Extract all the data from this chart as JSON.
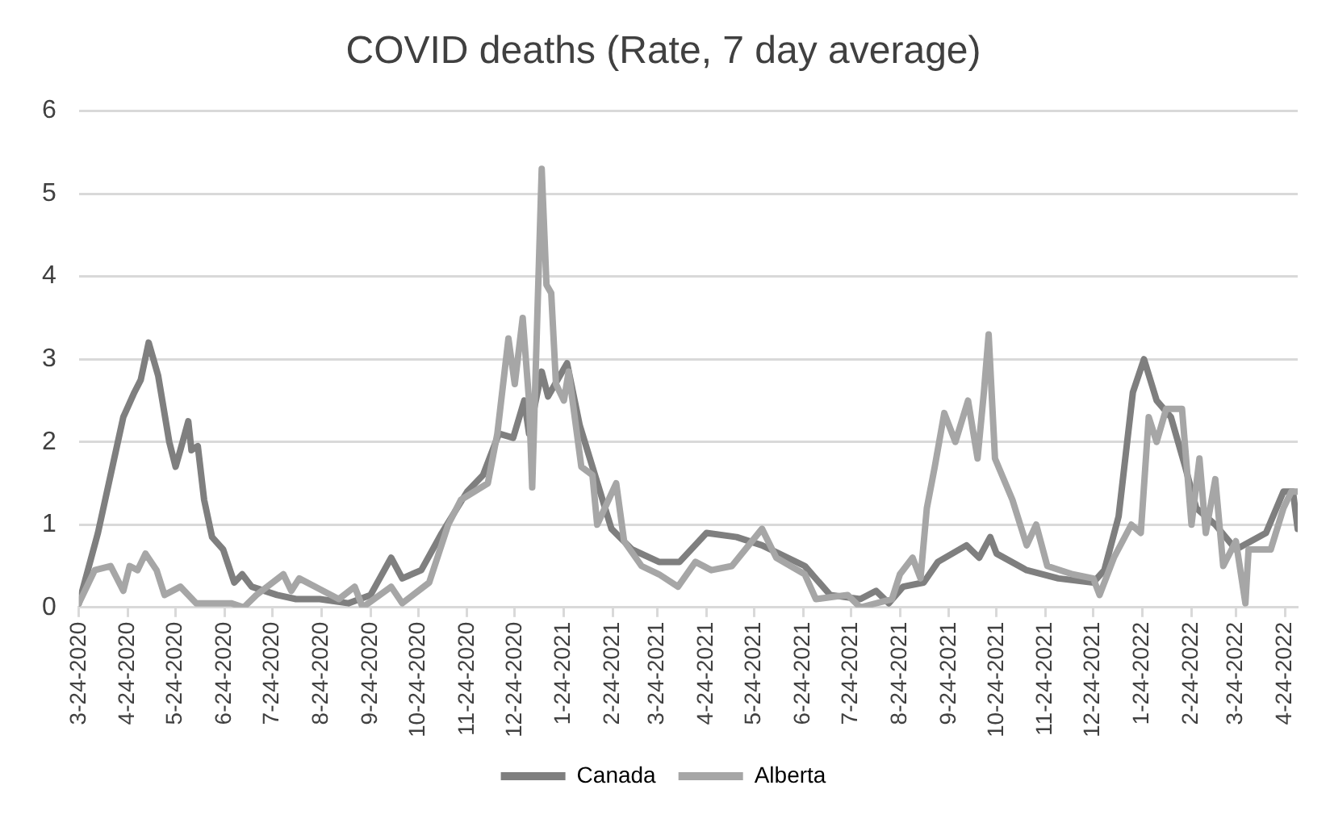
{
  "chart_data": {
    "type": "line",
    "title": "COVID deaths (Rate, 7 day average)",
    "xlim": [
      "2020-03-24",
      "2022-05-02"
    ],
    "xticks": [
      {
        "value": "2020-03-24",
        "label": "3-24-2020"
      },
      {
        "value": "2020-04-24",
        "label": "4-24-2020"
      },
      {
        "value": "2020-05-24",
        "label": "5-24-2020"
      },
      {
        "value": "2020-06-24",
        "label": "6-24-2020"
      },
      {
        "value": "2020-07-24",
        "label": "7-24-2020"
      },
      {
        "value": "2020-08-24",
        "label": "8-24-2020"
      },
      {
        "value": "2020-09-24",
        "label": "9-24-2020"
      },
      {
        "value": "2020-10-24",
        "label": "10-24-2020"
      },
      {
        "value": "2020-11-24",
        "label": "11-24-2020"
      },
      {
        "value": "2020-12-24",
        "label": "12-24-2020"
      },
      {
        "value": "2021-01-24",
        "label": "1-24-2021"
      },
      {
        "value": "2021-02-24",
        "label": "2-24-2021"
      },
      {
        "value": "2021-03-24",
        "label": "3-24-2021"
      },
      {
        "value": "2021-04-24",
        "label": "4-24-2021"
      },
      {
        "value": "2021-05-24",
        "label": "5-24-2021"
      },
      {
        "value": "2021-06-24",
        "label": "6-24-2021"
      },
      {
        "value": "2021-07-24",
        "label": "7-24-2021"
      },
      {
        "value": "2021-08-24",
        "label": "8-24-2021"
      },
      {
        "value": "2021-09-24",
        "label": "9-24-2021"
      },
      {
        "value": "2021-10-24",
        "label": "10-24-2021"
      },
      {
        "value": "2021-11-24",
        "label": "11-24-2021"
      },
      {
        "value": "2021-12-24",
        "label": "12-24-2021"
      },
      {
        "value": "2022-01-24",
        "label": "1-24-2022"
      },
      {
        "value": "2022-02-24",
        "label": "2-24-2022"
      },
      {
        "value": "2022-03-24",
        "label": "3-24-2022"
      },
      {
        "value": "2022-04-24",
        "label": "4-24-2022"
      }
    ],
    "ylim": [
      0,
      6
    ],
    "yticks": [
      0,
      1,
      2,
      3,
      4,
      5,
      6
    ],
    "grid": "y",
    "legend": "bottom",
    "marker": "none",
    "line_style": "solid",
    "series": [
      {
        "name": "Canada",
        "color": "#7f7f7f",
        "x": [
          "2020-03-24",
          "2020-04-05",
          "2020-04-21",
          "2020-04-28",
          "2020-05-02",
          "2020-05-07",
          "2020-05-13",
          "2020-05-20",
          "2020-05-24",
          "2020-05-27",
          "2020-06-01",
          "2020-06-03",
          "2020-06-07",
          "2020-06-11",
          "2020-06-16",
          "2020-06-23",
          "2020-06-30",
          "2020-07-05",
          "2020-07-11",
          "2020-07-27",
          "2020-08-08",
          "2020-08-23",
          "2020-09-10",
          "2020-09-24",
          "2020-10-07",
          "2020-10-14",
          "2020-10-26",
          "2020-11-08",
          "2020-11-24",
          "2020-12-04",
          "2020-12-14",
          "2020-12-23",
          "2020-12-30",
          "2021-01-02",
          "2021-01-10",
          "2021-01-14",
          "2021-01-26",
          "2021-02-03",
          "2021-02-11",
          "2021-02-23",
          "2021-03-08",
          "2021-03-25",
          "2021-04-07",
          "2021-04-24",
          "2021-05-13",
          "2021-05-29",
          "2021-06-25",
          "2021-07-11",
          "2021-07-30",
          "2021-08-09",
          "2021-08-17",
          "2021-08-26",
          "2021-09-08",
          "2021-09-17",
          "2021-10-05",
          "2021-10-13",
          "2021-10-20",
          "2021-10-24",
          "2021-11-12",
          "2021-12-02",
          "2021-12-24",
          "2021-12-31",
          "2022-01-09",
          "2022-01-18",
          "2022-01-25",
          "2022-02-02",
          "2022-02-11",
          "2022-02-20",
          "2022-02-27",
          "2022-03-11",
          "2022-03-24",
          "2022-04-12",
          "2022-04-23",
          "2022-04-29",
          "2022-05-02"
        ],
        "values": [
          0.05,
          0.9,
          2.3,
          2.6,
          2.75,
          3.2,
          2.8,
          2.0,
          1.7,
          1.9,
          2.25,
          1.9,
          1.95,
          1.3,
          0.85,
          0.7,
          0.3,
          0.4,
          0.25,
          0.15,
          0.1,
          0.1,
          0.05,
          0.15,
          0.6,
          0.35,
          0.45,
          0.9,
          1.4,
          1.6,
          2.1,
          2.05,
          2.5,
          2.1,
          2.85,
          2.55,
          2.95,
          2.2,
          1.7,
          0.95,
          0.7,
          0.55,
          0.55,
          0.9,
          0.85,
          0.75,
          0.5,
          0.15,
          0.1,
          0.2,
          0.05,
          0.25,
          0.3,
          0.55,
          0.75,
          0.6,
          0.85,
          0.65,
          0.45,
          0.35,
          0.3,
          0.45,
          1.1,
          2.6,
          3.0,
          2.5,
          2.3,
          1.7,
          1.2,
          1.0,
          0.7,
          0.9,
          1.4,
          1.4,
          0.95
        ]
      },
      {
        "name": "Alberta",
        "color": "#a6a6a6",
        "x": [
          "2020-03-24",
          "2020-04-03",
          "2020-04-13",
          "2020-04-21",
          "2020-04-25",
          "2020-04-30",
          "2020-05-05",
          "2020-05-12",
          "2020-05-17",
          "2020-05-27",
          "2020-06-06",
          "2020-06-28",
          "2020-07-06",
          "2020-07-14",
          "2020-07-31",
          "2020-08-05",
          "2020-08-10",
          "2020-08-25",
          "2020-09-04",
          "2020-09-14",
          "2020-09-19",
          "2020-10-07",
          "2020-10-14",
          "2020-10-31",
          "2020-11-12",
          "2020-11-20",
          "2020-12-07",
          "2020-12-13",
          "2020-12-20",
          "2020-12-24",
          "2020-12-29",
          "2021-01-02",
          "2021-01-04",
          "2021-01-10",
          "2021-01-13",
          "2021-01-16",
          "2021-01-19",
          "2021-01-24",
          "2021-01-27",
          "2021-02-04",
          "2021-02-11",
          "2021-02-14",
          "2021-02-26",
          "2021-03-03",
          "2021-03-14",
          "2021-03-25",
          "2021-04-06",
          "2021-04-17",
          "2021-04-27",
          "2021-05-10",
          "2021-05-29",
          "2021-06-07",
          "2021-06-25",
          "2021-07-02",
          "2021-07-22",
          "2021-07-30",
          "2021-08-19",
          "2021-08-24",
          "2021-09-01",
          "2021-09-06",
          "2021-09-10",
          "2021-09-15",
          "2021-09-21",
          "2021-09-28",
          "2021-10-06",
          "2021-10-12",
          "2021-10-16",
          "2021-10-19",
          "2021-10-23",
          "2021-11-03",
          "2021-11-12",
          "2021-11-18",
          "2021-11-25",
          "2021-12-11",
          "2021-12-24",
          "2021-12-28",
          "2022-01-06",
          "2022-01-17",
          "2022-01-23",
          "2022-01-28",
          "2022-02-02",
          "2022-02-08",
          "2022-02-18",
          "2022-02-24",
          "2022-03-01",
          "2022-03-05",
          "2022-03-11",
          "2022-03-16",
          "2022-03-24",
          "2022-03-30",
          "2022-04-01",
          "2022-04-15",
          "2022-04-23",
          "2022-04-28",
          "2022-05-02"
        ],
        "values": [
          0.05,
          0.45,
          0.5,
          0.2,
          0.5,
          0.45,
          0.65,
          0.45,
          0.15,
          0.25,
          0.05,
          0.05,
          0.0,
          0.15,
          0.4,
          0.2,
          0.35,
          0.2,
          0.1,
          0.25,
          0.0,
          0.25,
          0.05,
          0.3,
          1.0,
          1.3,
          1.5,
          2.1,
          3.25,
          2.7,
          3.5,
          2.5,
          1.45,
          5.3,
          3.9,
          3.8,
          2.7,
          2.5,
          2.85,
          1.7,
          1.6,
          1.0,
          1.5,
          0.8,
          0.5,
          0.4,
          0.25,
          0.55,
          0.45,
          0.5,
          0.95,
          0.6,
          0.4,
          0.1,
          0.15,
          0.0,
          0.1,
          0.4,
          0.6,
          0.35,
          1.2,
          1.7,
          2.35,
          2.0,
          2.5,
          1.8,
          2.6,
          3.3,
          1.8,
          1.3,
          0.75,
          1.0,
          0.5,
          0.4,
          0.35,
          0.15,
          0.6,
          1.0,
          0.9,
          2.3,
          2.0,
          2.4,
          2.4,
          1.0,
          1.8,
          0.9,
          1.55,
          0.5,
          0.8,
          0.05,
          0.7,
          0.7,
          1.2,
          1.4,
          1.4
        ]
      }
    ]
  }
}
